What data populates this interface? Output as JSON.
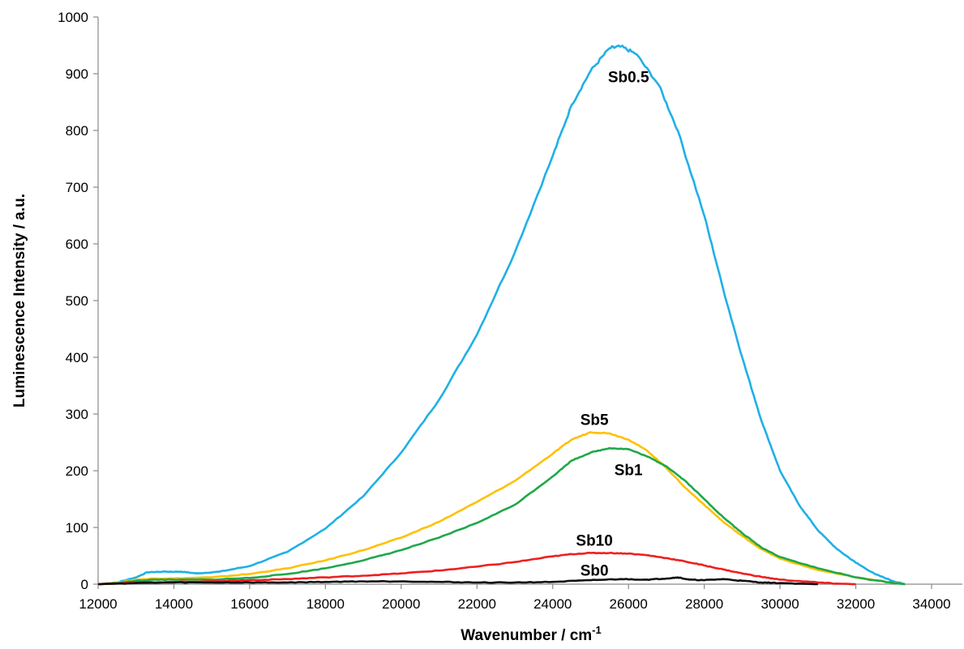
{
  "chart_data": {
    "type": "line",
    "title": "",
    "xlabel": "Wavenumber / cm",
    "xlabel_sup": "-1",
    "ylabel": "Luminescence Intensity / a.u.",
    "xlim": [
      12000,
      34000
    ],
    "ylim": [
      0,
      1000
    ],
    "x_ticks": [
      12000,
      14000,
      16000,
      18000,
      20000,
      22000,
      24000,
      26000,
      28000,
      30000,
      32000,
      34000
    ],
    "y_ticks": [
      0,
      100,
      200,
      300,
      400,
      500,
      600,
      700,
      800,
      900,
      1000
    ],
    "grid": false,
    "legend": "none",
    "series": [
      {
        "name": "Sb0.5",
        "color": "#1FB0E6",
        "label_pos": [
          26000,
          885
        ],
        "points": [
          [
            12000,
            0
          ],
          [
            12500,
            3
          ],
          [
            13000,
            12
          ],
          [
            13300,
            21
          ],
          [
            13700,
            22
          ],
          [
            14200,
            22
          ],
          [
            14600,
            19
          ],
          [
            15200,
            22
          ],
          [
            16000,
            32
          ],
          [
            17000,
            57
          ],
          [
            18000,
            98
          ],
          [
            19000,
            155
          ],
          [
            20000,
            232
          ],
          [
            21000,
            325
          ],
          [
            22000,
            440
          ],
          [
            23000,
            585
          ],
          [
            24000,
            755
          ],
          [
            24500,
            845
          ],
          [
            25000,
            905
          ],
          [
            25500,
            945
          ],
          [
            25800,
            948
          ],
          [
            26200,
            935
          ],
          [
            26800,
            880
          ],
          [
            27300,
            800
          ],
          [
            28000,
            650
          ],
          [
            28500,
            520
          ],
          [
            29000,
            400
          ],
          [
            29500,
            290
          ],
          [
            30000,
            200
          ],
          [
            30500,
            140
          ],
          [
            31000,
            95
          ],
          [
            31500,
            62
          ],
          [
            32000,
            38
          ],
          [
            32500,
            18
          ],
          [
            33000,
            5
          ],
          [
            33300,
            0
          ]
        ]
      },
      {
        "name": "Sb5",
        "color": "#FFC000",
        "label_pos": [
          25100,
          281
        ],
        "points": [
          [
            12000,
            0
          ],
          [
            12500,
            3
          ],
          [
            13000,
            8
          ],
          [
            13500,
            10
          ],
          [
            14000,
            10
          ],
          [
            15000,
            12
          ],
          [
            16000,
            18
          ],
          [
            17000,
            28
          ],
          [
            18000,
            42
          ],
          [
            19000,
            60
          ],
          [
            20000,
            82
          ],
          [
            21000,
            110
          ],
          [
            22000,
            145
          ],
          [
            23000,
            182
          ],
          [
            24000,
            230
          ],
          [
            24500,
            255
          ],
          [
            25000,
            268
          ],
          [
            25500,
            266
          ],
          [
            26000,
            255
          ],
          [
            26500,
            235
          ],
          [
            27000,
            205
          ],
          [
            27500,
            170
          ],
          [
            28000,
            140
          ],
          [
            28500,
            110
          ],
          [
            29000,
            85
          ],
          [
            29500,
            62
          ],
          [
            30000,
            45
          ],
          [
            31000,
            25
          ],
          [
            32000,
            12
          ],
          [
            33000,
            2
          ],
          [
            33300,
            0
          ]
        ]
      },
      {
        "name": "Sb1",
        "color": "#1EA84A",
        "label_pos": [
          26000,
          192
        ],
        "points": [
          [
            12000,
            0
          ],
          [
            12500,
            2
          ],
          [
            13000,
            6
          ],
          [
            13500,
            8
          ],
          [
            14000,
            8
          ],
          [
            15000,
            8
          ],
          [
            16000,
            11
          ],
          [
            17000,
            18
          ],
          [
            18000,
            28
          ],
          [
            19000,
            42
          ],
          [
            20000,
            60
          ],
          [
            21000,
            82
          ],
          [
            22000,
            108
          ],
          [
            23000,
            140
          ],
          [
            24000,
            190
          ],
          [
            24500,
            218
          ],
          [
            25000,
            232
          ],
          [
            25500,
            240
          ],
          [
            26000,
            238
          ],
          [
            26500,
            225
          ],
          [
            27000,
            208
          ],
          [
            27500,
            182
          ],
          [
            28000,
            150
          ],
          [
            28500,
            118
          ],
          [
            29000,
            90
          ],
          [
            29500,
            65
          ],
          [
            30000,
            48
          ],
          [
            31000,
            28
          ],
          [
            32000,
            12
          ],
          [
            33000,
            2
          ],
          [
            33300,
            0
          ]
        ]
      },
      {
        "name": "Sb10",
        "color": "#EE2020",
        "label_pos": [
          25100,
          68
        ],
        "points": [
          [
            12000,
            0
          ],
          [
            13000,
            3
          ],
          [
            14000,
            4
          ],
          [
            15000,
            5
          ],
          [
            16000,
            7
          ],
          [
            17000,
            9
          ],
          [
            18000,
            12
          ],
          [
            19000,
            15
          ],
          [
            20000,
            19
          ],
          [
            21000,
            24
          ],
          [
            22000,
            31
          ],
          [
            23000,
            39
          ],
          [
            24000,
            49
          ],
          [
            24500,
            53
          ],
          [
            25000,
            55
          ],
          [
            25500,
            55
          ],
          [
            26000,
            54
          ],
          [
            26500,
            51
          ],
          [
            27000,
            46
          ],
          [
            27500,
            40
          ],
          [
            28000,
            33
          ],
          [
            28500,
            26
          ],
          [
            29000,
            19
          ],
          [
            29500,
            13
          ],
          [
            30000,
            8
          ],
          [
            31000,
            3
          ],
          [
            31500,
            1
          ],
          [
            32000,
            0
          ]
        ]
      },
      {
        "name": "Sb0",
        "color": "#111111",
        "label_pos": [
          25100,
          15
        ],
        "points": [
          [
            12000,
            0
          ],
          [
            13000,
            2
          ],
          [
            14000,
            3
          ],
          [
            15000,
            3
          ],
          [
            16000,
            3
          ],
          [
            17000,
            3
          ],
          [
            18000,
            4
          ],
          [
            19000,
            5
          ],
          [
            20000,
            5
          ],
          [
            21000,
            4
          ],
          [
            22000,
            3
          ],
          [
            23000,
            3
          ],
          [
            24000,
            4
          ],
          [
            25000,
            7
          ],
          [
            25800,
            9
          ],
          [
            26500,
            8
          ],
          [
            27000,
            10
          ],
          [
            27300,
            12
          ],
          [
            27600,
            8
          ],
          [
            28000,
            7
          ],
          [
            28500,
            9
          ],
          [
            29000,
            6
          ],
          [
            29500,
            3
          ],
          [
            30000,
            2
          ],
          [
            31000,
            0
          ]
        ]
      }
    ]
  }
}
